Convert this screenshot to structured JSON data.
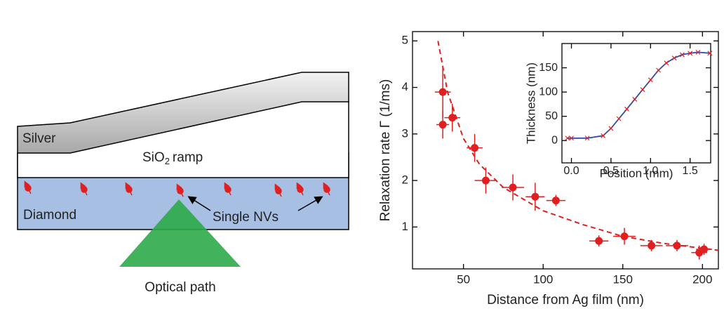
{
  "diagram": {
    "silver": "Silver",
    "sio2": {
      "base": "SiO",
      "sub": "2",
      "rest": "ramp"
    },
    "diamond": "Diamond",
    "single_nvs": "Single NVs",
    "optical_path": "Optical path"
  },
  "chart_data": [
    {
      "type": "scatter",
      "xlabel": "Distance from Ag film (nm)",
      "ylabel": "Relaxation rate Γ (1/ms)",
      "x": [
        37,
        37,
        43,
        57,
        64,
        81,
        95,
        108,
        135,
        151,
        168,
        184,
        198,
        201
      ],
      "values": [
        3.9,
        3.2,
        3.35,
        2.7,
        2.0,
        1.85,
        1.65,
        1.57,
        0.7,
        0.8,
        0.6,
        0.6,
        0.45,
        0.52
      ],
      "xerr": [
        5,
        4,
        5,
        5,
        7,
        7,
        6,
        6,
        6,
        7,
        7,
        7,
        5,
        5
      ],
      "yerr": [
        0.55,
        0.3,
        0.3,
        0.3,
        0.28,
        0.28,
        0.3,
        0.12,
        0.12,
        0.18,
        0.12,
        0.12,
        0.15,
        0.12
      ],
      "color": "#e02020",
      "fit": {
        "x": [
          34,
          40,
          50,
          60,
          75,
          100,
          125,
          150,
          175,
          210
        ],
        "values": [
          5.0,
          3.9,
          2.9,
          2.35,
          1.85,
          1.35,
          1.05,
          0.8,
          0.65,
          0.5
        ],
        "color": "#e02020",
        "dash": true
      },
      "xlim": [
        18,
        210
      ],
      "ylim": [
        0.1,
        5.2
      ],
      "xticks": [
        50,
        100,
        150,
        200
      ],
      "yticks": [
        1,
        2,
        3,
        4,
        5
      ]
    },
    {
      "type": "line",
      "xlabel": "Position (mm)",
      "ylabel": "Thickness (nm)",
      "x": [
        -0.05,
        0.0,
        0.2,
        0.4,
        0.5,
        0.6,
        0.7,
        0.8,
        0.9,
        1.0,
        1.1,
        1.2,
        1.3,
        1.4,
        1.5,
        1.6,
        1.75
      ],
      "values": [
        5,
        5,
        5,
        10,
        25,
        45,
        65,
        85,
        105,
        125,
        145,
        160,
        170,
        177,
        180,
        182,
        180
      ],
      "color": "#2a4fb0",
      "marker_color": "#e02020",
      "xlim": [
        -0.12,
        1.76
      ],
      "ylim": [
        -46,
        200
      ],
      "xticks": [
        {
          "value": 0,
          "label": "0.0"
        },
        0.5,
        {
          "value": 1,
          "label": "1.0"
        },
        1.5
      ],
      "yticks": [
        0,
        50,
        100,
        150
      ]
    }
  ]
}
